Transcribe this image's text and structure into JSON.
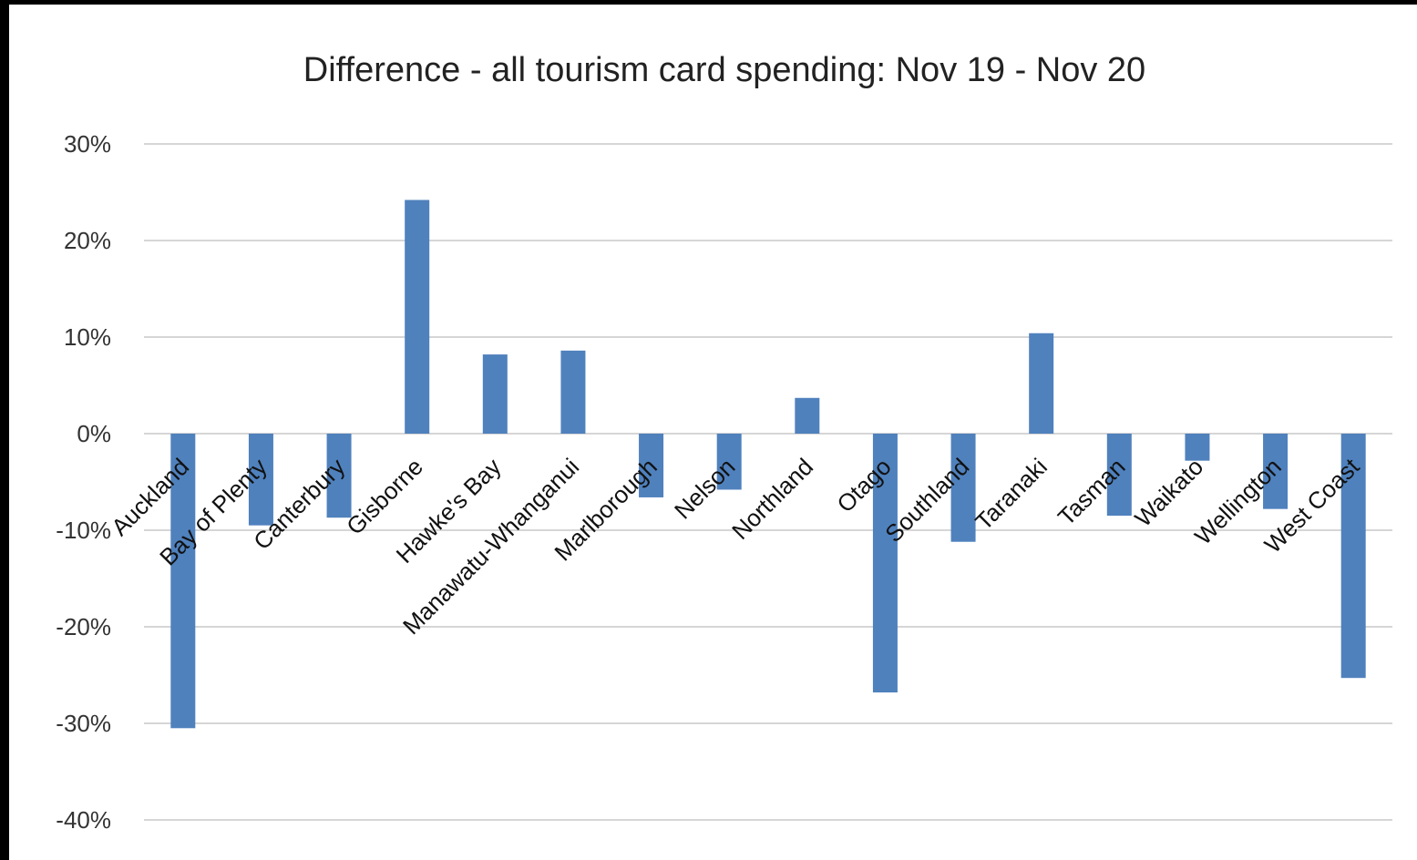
{
  "chart_data": {
    "type": "bar",
    "title": "Difference - all tourism card spending: Nov 19 - Nov 20",
    "xlabel": "",
    "ylabel": "",
    "categories": [
      "Auckland",
      "Bay of Plenty",
      "Canterbury",
      "Gisborne",
      "Hawke's Bay",
      "Manawatu-Whanganui",
      "Marlborough",
      "Nelson",
      "Northland",
      "Otago",
      "Southland",
      "Taranaki",
      "Tasman",
      "Waikato",
      "Wellington",
      "West Coast"
    ],
    "values": [
      -30.5,
      -9.5,
      -8.7,
      24.2,
      8.2,
      8.6,
      -6.6,
      -5.8,
      3.7,
      -26.8,
      -11.2,
      10.4,
      -8.5,
      -2.8,
      -7.8,
      -25.3
    ],
    "ylim": [
      -40,
      30
    ],
    "yticks": [
      30,
      20,
      10,
      0,
      -10,
      -20,
      -30,
      -40
    ],
    "ytick_labels": [
      "30%",
      "20%",
      "10%",
      "0%",
      "-10%",
      "-20%",
      "-30%",
      "-40%"
    ],
    "grid": true,
    "legend": false,
    "bar_color": "#4f81bd"
  }
}
